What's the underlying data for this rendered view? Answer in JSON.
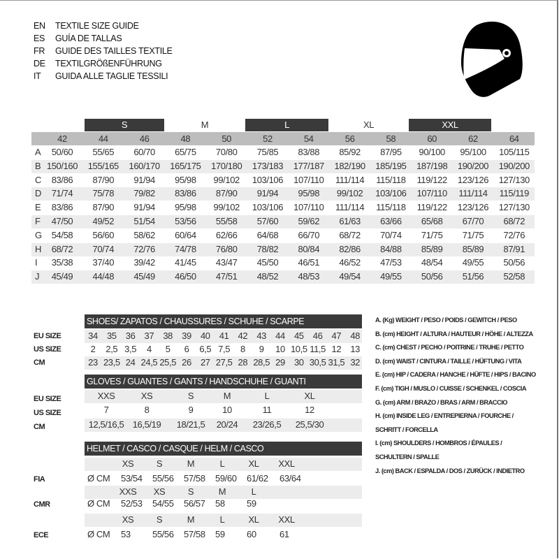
{
  "titles": [
    {
      "code": "EN",
      "text": "TEXTILE SIZE GUIDE"
    },
    {
      "code": "ES",
      "text": "GUÍA DE TALLAS"
    },
    {
      "code": "FR",
      "text": "GUIDE DES TAILLES TEXTILE"
    },
    {
      "code": "DE",
      "text": "TEXTILGRÖßENFÜHRUNG"
    },
    {
      "code": "IT",
      "text": "GUIDA ALLE TAGLIE TESSILI"
    }
  ],
  "icon": "helmet-icon",
  "textile": {
    "size_bands": [
      {
        "label": "S",
        "dark": true
      },
      {
        "label": "M",
        "dark": false
      },
      {
        "label": "L",
        "dark": true
      },
      {
        "label": "XL",
        "dark": false
      },
      {
        "label": "XXL",
        "dark": true
      }
    ],
    "sizes": [
      "42",
      "44",
      "46",
      "48",
      "50",
      "52",
      "54",
      "56",
      "58",
      "60",
      "62",
      "64"
    ],
    "rows": [
      {
        "letter": "A",
        "values": [
          "50/60",
          "55/65",
          "60/70",
          "65/75",
          "70/80",
          "75/85",
          "83/88",
          "85/92",
          "87/95",
          "90/100",
          "95/100",
          "105/115"
        ]
      },
      {
        "letter": "B",
        "values": [
          "150/160",
          "155/165",
          "160/170",
          "165/175",
          "170/180",
          "173/183",
          "177/187",
          "182/190",
          "185/195",
          "187/198",
          "190/200",
          "190/200"
        ]
      },
      {
        "letter": "C",
        "values": [
          "83/86",
          "87/90",
          "91/94",
          "95/98",
          "99/102",
          "103/106",
          "107/110",
          "111/114",
          "115/118",
          "119/122",
          "123/126",
          "127/130"
        ]
      },
      {
        "letter": "D",
        "values": [
          "71/74",
          "75/78",
          "79/82",
          "83/86",
          "87/90",
          "91/94",
          "95/98",
          "99/102",
          "103/106",
          "107/110",
          "111/114",
          "115/119"
        ]
      },
      {
        "letter": "E",
        "values": [
          "83/86",
          "87/90",
          "91/94",
          "95/98",
          "99/102",
          "103/106",
          "107/110",
          "111/114",
          "115/118",
          "119/122",
          "123/126",
          "127/130"
        ]
      },
      {
        "letter": "F",
        "values": [
          "47/50",
          "49/52",
          "51/54",
          "53/56",
          "55/58",
          "57/60",
          "59/62",
          "61/63",
          "63/66",
          "65/68",
          "67/70",
          "68/72"
        ]
      },
      {
        "letter": "G",
        "values": [
          "54/58",
          "56/60",
          "58/62",
          "60/64",
          "62/66",
          "64/68",
          "66/70",
          "68/72",
          "70/74",
          "71/75",
          "71/75",
          "72/76"
        ]
      },
      {
        "letter": "H",
        "values": [
          "68/72",
          "70/74",
          "72/76",
          "74/78",
          "76/80",
          "78/82",
          "80/84",
          "82/86",
          "84/88",
          "85/89",
          "85/89",
          "87/91"
        ]
      },
      {
        "letter": "I",
        "values": [
          "35/38",
          "37/40",
          "39/42",
          "41/45",
          "43/47",
          "45/50",
          "46/51",
          "46/52",
          "47/53",
          "48/54",
          "49/55",
          "50/56"
        ]
      },
      {
        "letter": "J",
        "values": [
          "45/49",
          "44/48",
          "45/49",
          "46/50",
          "47/51",
          "48/52",
          "48/53",
          "49/54",
          "49/55",
          "50/56",
          "51/56",
          "52/58"
        ]
      }
    ]
  },
  "shoes": {
    "title": "SHOES/ ZAPATOS / CHAUSSURES / SCHUHE / SCARPE",
    "rows": [
      {
        "label": "EU SIZE",
        "values": [
          "34",
          "35",
          "36",
          "37",
          "38",
          "39",
          "40",
          "41",
          "42",
          "43",
          "44",
          "45",
          "46",
          "47",
          "48"
        ]
      },
      {
        "label": "US SIZE",
        "values": [
          "2",
          "2,5",
          "3,5",
          "4",
          "5",
          "6",
          "6,5",
          "7,5",
          "8",
          "9",
          "10",
          "10,5",
          "11,5",
          "12",
          "13"
        ]
      },
      {
        "label": "CM",
        "values": [
          "23",
          "23,5",
          "24",
          "24,5",
          "25,5",
          "26",
          "27",
          "27,5",
          "28",
          "28,5",
          "29",
          "30",
          "30,5",
          "31,5",
          "32"
        ]
      }
    ]
  },
  "gloves": {
    "title": "GLOVES / GUANTES / GANTS / HANDSCHUHE / GUANTI",
    "rows": [
      {
        "label": "EU SIZE",
        "values": [
          "XXS",
          "XS",
          "S",
          "M",
          "L",
          "XL"
        ]
      },
      {
        "label": "US SIZE",
        "values": [
          "7",
          "8",
          "9",
          "10",
          "11",
          "12"
        ]
      },
      {
        "label": "CM",
        "values": [
          "12,5/16,5",
          "16,5/19",
          "18/21,5",
          "20/24",
          "23/26,5",
          "25,5/30"
        ]
      }
    ]
  },
  "helmet": {
    "title": "HELMET / CASCO / CASQUE / HELM / CASCO",
    "unit": "Ø CM",
    "standards": [
      {
        "label": "FIA",
        "sizes": [
          "XS",
          "S",
          "M",
          "L",
          "XL",
          "XXL"
        ],
        "values": [
          "53/54",
          "55/56",
          "57/58",
          "59/60",
          "61/62",
          "63/64"
        ]
      },
      {
        "label": "CMR",
        "sizes": [
          "XXS",
          "XS",
          "S",
          "M",
          "L"
        ],
        "values": [
          "52/53",
          "54/55",
          "56/57",
          "58",
          "59"
        ]
      },
      {
        "label": "ECE",
        "sizes": [
          "XS",
          "S",
          "M",
          "L",
          "XL",
          "XXL"
        ],
        "values": [
          "53",
          "55/56",
          "57/58",
          "59",
          "60",
          "61"
        ]
      }
    ]
  },
  "legend": [
    "A. (Kg) WEIGHT / PESO / POIDS / GEWITCH / PESO",
    "B. (cm) HEIGHT / ALTURA / HAUTEUR / HÖHE / ALTEZZA",
    "C. (cm) CHEST / PECHO / POITRINE / TRUHE / PETTO",
    "D. (cm) WAIST / CINTURA / TAILLE / HÜFTUNG / VITA",
    "E. (cm) HIP / CADERA / HANCHE / HÜFTE / HIPS / BACINO",
    "F. (cm) TIGH / MUSLO / CUISSE / SCHENKEL / COSCIA",
    "G. (cm) ARM / BRAZO / BRAS / ARM / BRACCIO",
    "H. (cm) INSIDE LEG / ENTREPIERNA / FOURCHE /",
    "SCHRITT / FORCELLA",
    "I. (cm) SHOULDERS / HOMBROS / ÉPAULES /",
    "SCHULTERN / SPALLE",
    "J. (cm) BACK / ESPALDA / DOS / ZURÜCK / INDIETRO"
  ]
}
